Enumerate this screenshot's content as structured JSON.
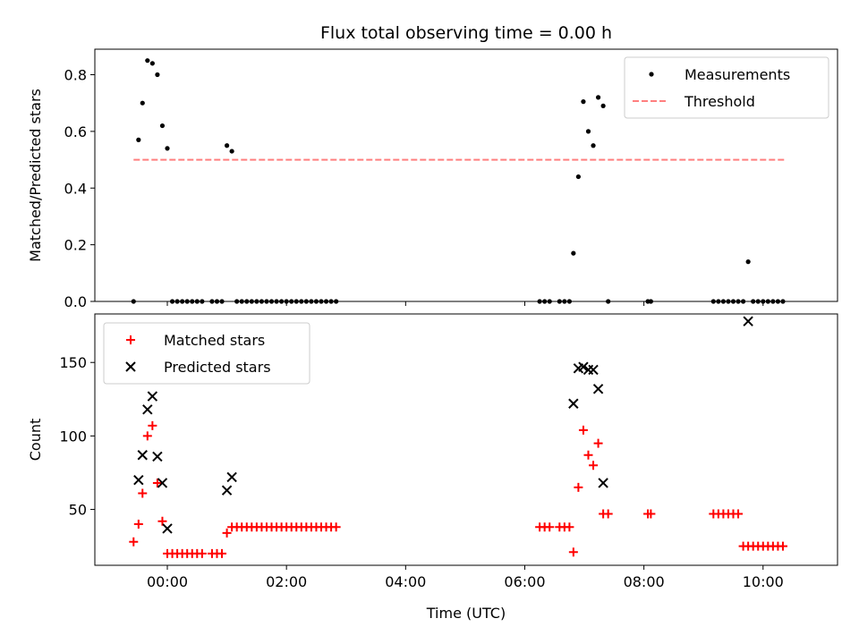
{
  "chart_data": [
    {
      "type": "scatter",
      "title": "Flux total observing time = 0.00 h",
      "xlabel": "",
      "ylabel": "Matched/Predicted stars",
      "xlim": [
        -73,
        675
      ],
      "ylim": [
        0,
        0.89
      ],
      "yticks": [
        0.0,
        0.2,
        0.4,
        0.6,
        0.8
      ],
      "yticklabels": [
        "0.0",
        "0.2",
        "0.4",
        "0.6",
        "0.8"
      ],
      "xticks": [
        0,
        120,
        240,
        360,
        480,
        600
      ],
      "xticklabels": [],
      "legend_position": "top-right",
      "grid": false,
      "series": [
        {
          "name": "Measurements",
          "marker": "dot",
          "color": "#000000",
          "points": [
            [
              -34,
              0
            ],
            [
              -29,
              0.57
            ],
            [
              -25,
              0.7
            ],
            [
              -20,
              0.85
            ],
            [
              -15,
              0.84
            ],
            [
              -10,
              0.8
            ],
            [
              -5,
              0.62
            ],
            [
              0,
              0.54
            ],
            [
              5,
              0
            ],
            [
              10,
              0
            ],
            [
              15,
              0
            ],
            [
              20,
              0
            ],
            [
              25,
              0
            ],
            [
              30,
              0
            ],
            [
              35,
              0
            ],
            [
              45,
              0
            ],
            [
              50,
              0
            ],
            [
              55,
              0
            ],
            [
              60,
              0.55
            ],
            [
              65,
              0.53
            ],
            [
              70,
              0
            ],
            [
              75,
              0
            ],
            [
              80,
              0
            ],
            [
              85,
              0
            ],
            [
              90,
              0
            ],
            [
              95,
              0
            ],
            [
              100,
              0
            ],
            [
              105,
              0
            ],
            [
              110,
              0
            ],
            [
              115,
              0
            ],
            [
              120,
              0
            ],
            [
              125,
              0
            ],
            [
              130,
              0
            ],
            [
              135,
              0
            ],
            [
              140,
              0
            ],
            [
              145,
              0
            ],
            [
              150,
              0
            ],
            [
              155,
              0
            ],
            [
              160,
              0
            ],
            [
              165,
              0
            ],
            [
              170,
              0
            ],
            [
              375,
              0
            ],
            [
              380,
              0
            ],
            [
              385,
              0
            ],
            [
              395,
              0
            ],
            [
              400,
              0
            ],
            [
              405,
              0
            ],
            [
              409,
              0.17
            ],
            [
              414,
              0.44
            ],
            [
              419,
              0.705
            ],
            [
              424,
              0.6
            ],
            [
              429,
              0.55
            ],
            [
              434,
              0.72
            ],
            [
              439,
              0.69
            ],
            [
              444,
              0
            ],
            [
              484,
              0
            ],
            [
              487,
              0
            ],
            [
              550,
              0
            ],
            [
              555,
              0
            ],
            [
              560,
              0
            ],
            [
              565,
              0
            ],
            [
              570,
              0
            ],
            [
              575,
              0
            ],
            [
              580,
              0
            ],
            [
              585,
              0.14
            ],
            [
              590,
              0
            ],
            [
              595,
              0
            ],
            [
              600,
              0
            ],
            [
              605,
              0
            ],
            [
              610,
              0
            ],
            [
              615,
              0
            ],
            [
              620,
              0
            ]
          ]
        },
        {
          "name": "Threshold",
          "marker": "dashed-line",
          "color": "#ff7f7f",
          "points": [
            [
              -34,
              0.5
            ],
            [
              622,
              0.5
            ]
          ]
        }
      ]
    },
    {
      "type": "scatter",
      "title": "",
      "xlabel": "Time (UTC)",
      "ylabel": "Count",
      "xlim": [
        -73,
        675
      ],
      "ylim": [
        12,
        183
      ],
      "yticks": [
        50,
        100,
        150
      ],
      "yticklabels": [
        "50",
        "100",
        "150"
      ],
      "xticks": [
        0,
        120,
        240,
        360,
        480,
        600
      ],
      "xticklabels": [
        "00:00",
        "02:00",
        "04:00",
        "06:00",
        "08:00",
        "10:00"
      ],
      "legend_position": "top-left",
      "grid": false,
      "series": [
        {
          "name": "Matched stars",
          "marker": "plus",
          "color": "#ff0000",
          "points": [
            [
              -34,
              28
            ],
            [
              -29,
              40
            ],
            [
              -25,
              61
            ],
            [
              -20,
              100
            ],
            [
              -15,
              107
            ],
            [
              -10,
              68
            ],
            [
              -5,
              42
            ],
            [
              0,
              20
            ],
            [
              5,
              20
            ],
            [
              10,
              20
            ],
            [
              15,
              20
            ],
            [
              20,
              20
            ],
            [
              25,
              20
            ],
            [
              30,
              20
            ],
            [
              35,
              20
            ],
            [
              45,
              20
            ],
            [
              50,
              20
            ],
            [
              55,
              20
            ],
            [
              60,
              34
            ],
            [
              65,
              38
            ],
            [
              70,
              38
            ],
            [
              75,
              38
            ],
            [
              80,
              38
            ],
            [
              85,
              38
            ],
            [
              90,
              38
            ],
            [
              95,
              38
            ],
            [
              100,
              38
            ],
            [
              105,
              38
            ],
            [
              110,
              38
            ],
            [
              115,
              38
            ],
            [
              120,
              38
            ],
            [
              125,
              38
            ],
            [
              130,
              38
            ],
            [
              135,
              38
            ],
            [
              140,
              38
            ],
            [
              145,
              38
            ],
            [
              150,
              38
            ],
            [
              155,
              38
            ],
            [
              160,
              38
            ],
            [
              165,
              38
            ],
            [
              170,
              38
            ],
            [
              375,
              38
            ],
            [
              380,
              38
            ],
            [
              385,
              38
            ],
            [
              395,
              38
            ],
            [
              400,
              38
            ],
            [
              405,
              38
            ],
            [
              409,
              21
            ],
            [
              414,
              65
            ],
            [
              419,
              104
            ],
            [
              424,
              87
            ],
            [
              429,
              80
            ],
            [
              434,
              95
            ],
            [
              439,
              47
            ],
            [
              444,
              47
            ],
            [
              484,
              47
            ],
            [
              487,
              47
            ],
            [
              550,
              47
            ],
            [
              555,
              47
            ],
            [
              560,
              47
            ],
            [
              565,
              47
            ],
            [
              570,
              47
            ],
            [
              575,
              47
            ],
            [
              580,
              25
            ],
            [
              585,
              25
            ],
            [
              590,
              25
            ],
            [
              595,
              25
            ],
            [
              600,
              25
            ],
            [
              605,
              25
            ],
            [
              610,
              25
            ],
            [
              615,
              25
            ],
            [
              620,
              25
            ]
          ]
        },
        {
          "name": "Predicted stars",
          "marker": "x",
          "color": "#000000",
          "points": [
            [
              -29,
              70
            ],
            [
              -25,
              87
            ],
            [
              -20,
              118
            ],
            [
              -15,
              127
            ],
            [
              -10,
              86
            ],
            [
              -5,
              68
            ],
            [
              0,
              37
            ],
            [
              60,
              63
            ],
            [
              65,
              72
            ],
            [
              409,
              122
            ],
            [
              414,
              146
            ],
            [
              419,
              147
            ],
            [
              424,
              145
            ],
            [
              429,
              145
            ],
            [
              434,
              132
            ],
            [
              439,
              68
            ],
            [
              585,
              178
            ]
          ]
        }
      ]
    }
  ]
}
